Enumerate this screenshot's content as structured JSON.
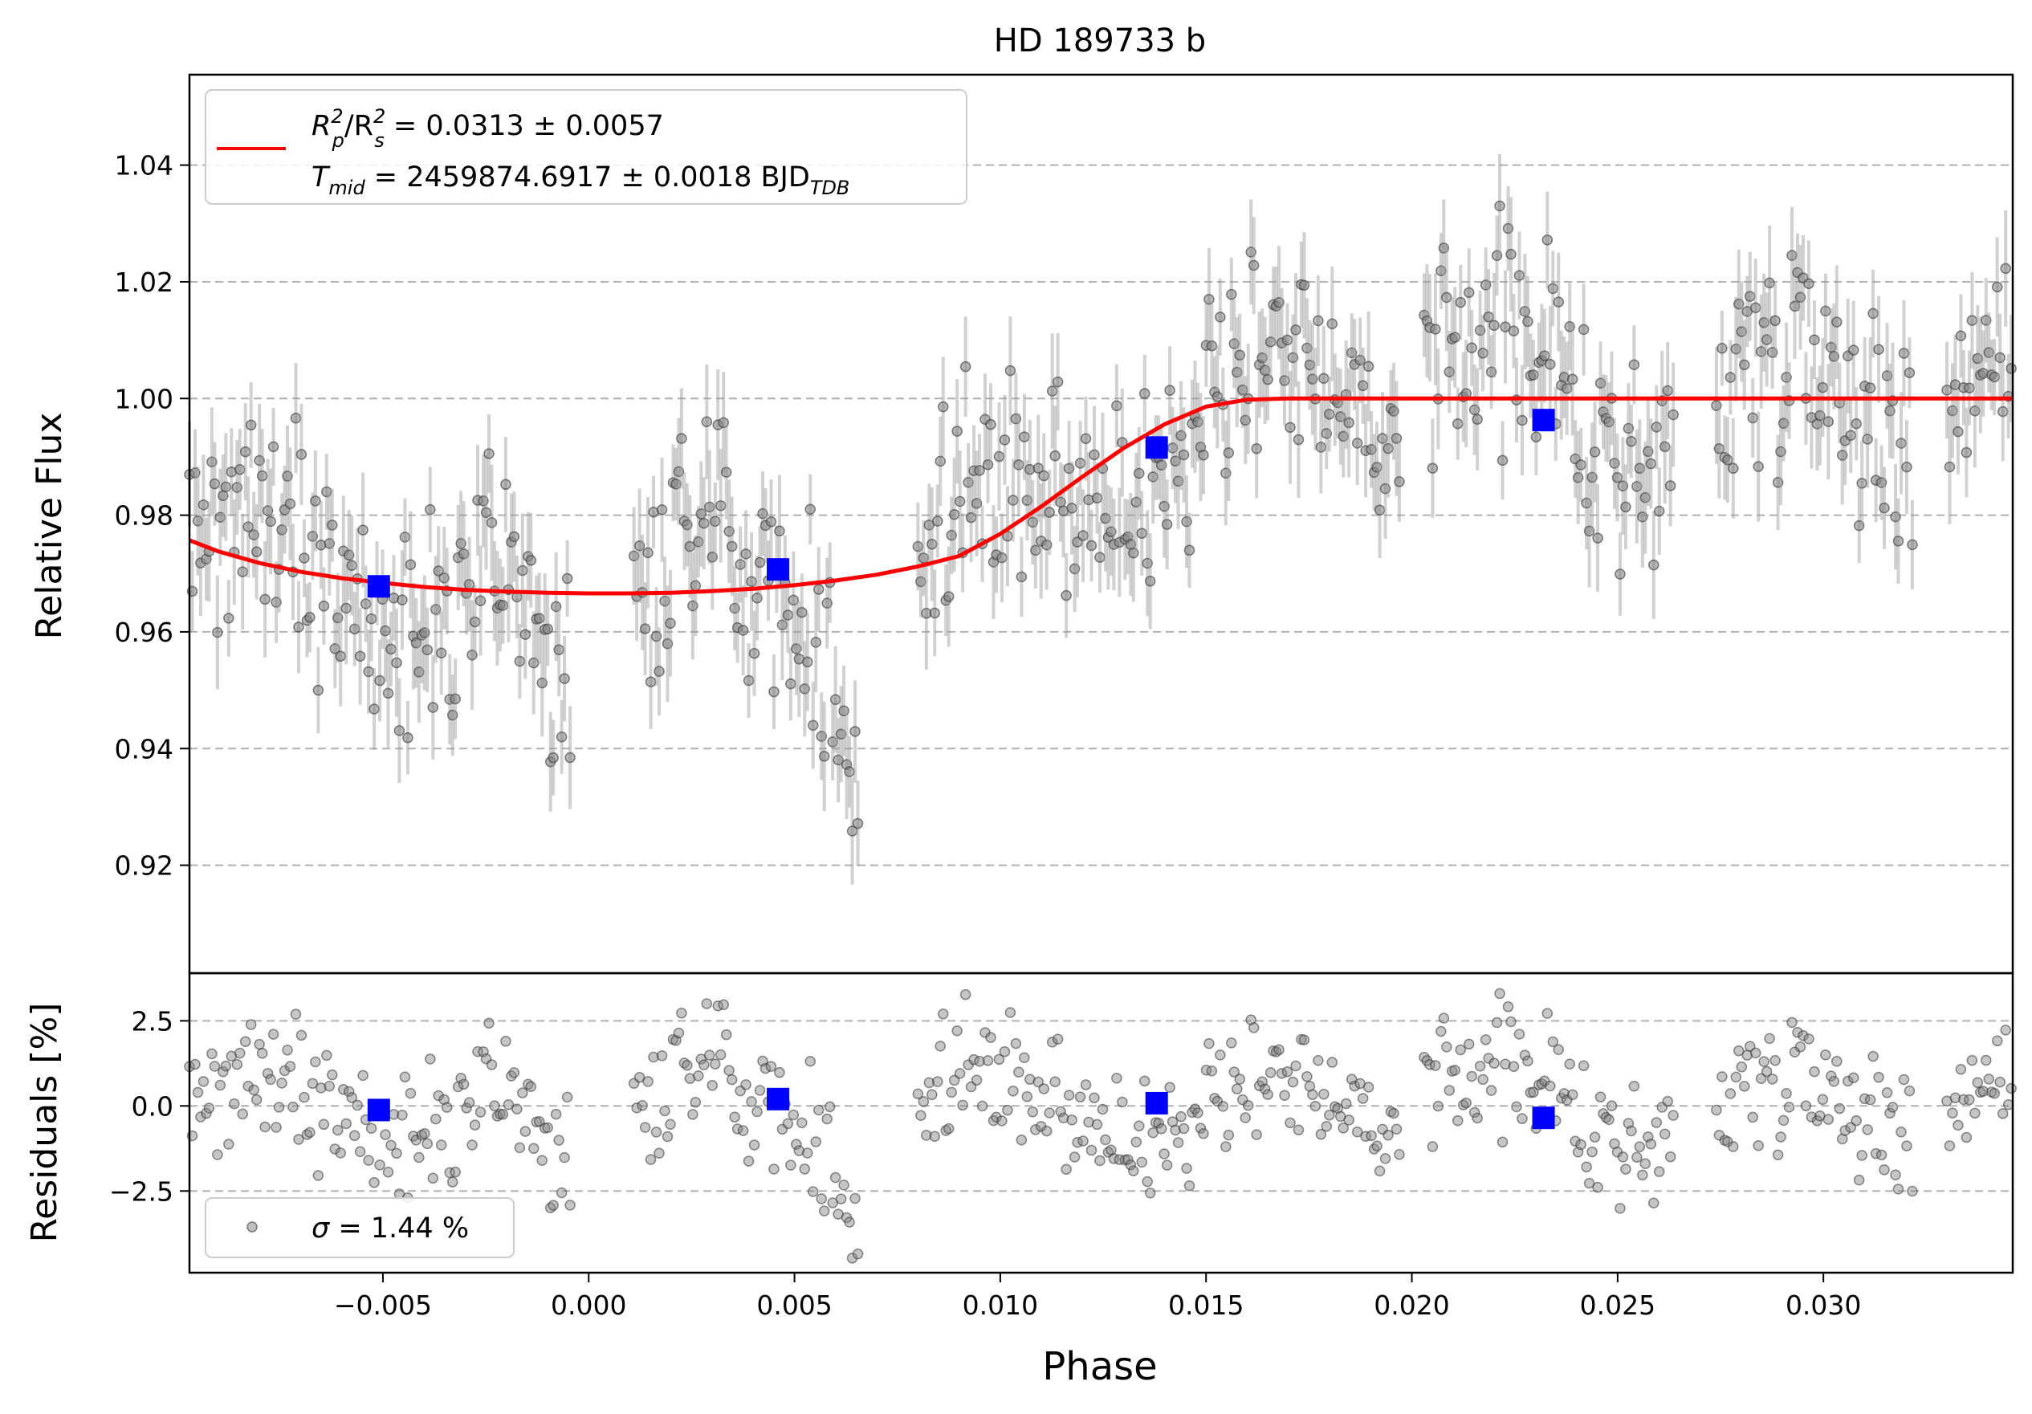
{
  "chart_data": [
    {
      "panel": "main",
      "type": "scatter",
      "title": "HD 189733 b",
      "xlabel": "",
      "ylabel": "Relative Flux",
      "xlim": [
        -0.0097,
        0.0346
      ],
      "ylim": [
        0.9015,
        1.0555
      ],
      "yticks": [
        0.92,
        0.94,
        0.96,
        0.98,
        1.0,
        1.02,
        1.04
      ],
      "ytick_labels": [
        "0.92",
        "0.94",
        "0.96",
        "0.98",
        "1.00",
        "1.02",
        "1.04"
      ],
      "grid": "y-dashed",
      "legend": {
        "placement": "upper-left",
        "line1": {
          "pre": "R",
          "sub1": "p",
          "sup1": "2",
          "mid": "/R",
          "sub2": "s",
          "sup2": "2",
          "post": " = 0.0313 ± 0.0057"
        },
        "line2": {
          "pre": "T",
          "sub1": "mid",
          "mid": " = 2459874.6917 ± 0.0018 BJD",
          "sub2": "TDB"
        }
      },
      "series": [
        {
          "kind": "model",
          "color": "#ff0000",
          "x": [
            -0.0097,
            -0.009,
            -0.008,
            -0.007,
            -0.006,
            -0.005,
            -0.004,
            -0.003,
            -0.002,
            -0.001,
            0.0,
            0.001,
            0.002,
            0.003,
            0.004,
            0.005,
            0.006,
            0.007,
            0.008,
            0.009,
            0.01,
            0.011,
            0.012,
            0.013,
            0.014,
            0.015,
            0.016,
            0.017,
            0.02,
            0.025,
            0.03,
            0.0346
          ],
          "y": [
            0.9757,
            0.9738,
            0.9718,
            0.9703,
            0.9692,
            0.9684,
            0.9677,
            0.9672,
            0.9669,
            0.9667,
            0.9666,
            0.9666,
            0.9667,
            0.967,
            0.9674,
            0.968,
            0.9688,
            0.9698,
            0.9712,
            0.973,
            0.9768,
            0.9815,
            0.9866,
            0.9915,
            0.9956,
            0.9986,
            0.9998,
            1.0,
            1.0,
            1.0,
            1.0,
            1.0
          ]
        },
        {
          "kind": "binned",
          "color": "#0000ff",
          "x": [
            -0.0051,
            0.0046,
            0.0138,
            0.0232
          ],
          "y": [
            0.9678,
            0.9707,
            0.9916,
            0.9963
          ]
        }
      ]
    },
    {
      "panel": "residuals",
      "type": "scatter",
      "xlabel": "Phase",
      "ylabel": "Residuals [%]",
      "xlim": [
        -0.0097,
        0.0346
      ],
      "ylim": [
        -4.9,
        3.9
      ],
      "yticks": [
        -2.5,
        0.0,
        2.5
      ],
      "ytick_labels": [
        "−2.5",
        "0.0",
        "2.5"
      ],
      "xticks": [
        -0.005,
        0.0,
        0.005,
        0.01,
        0.015,
        0.02,
        0.025,
        0.03
      ],
      "xtick_labels": [
        "−0.005",
        "0.000",
        "0.005",
        "0.010",
        "0.015",
        "0.020",
        "0.025",
        "0.030"
      ],
      "grid": "y-dashed",
      "legend": {
        "placement": "lower-left",
        "label_pre": "σ",
        "label_post": " = 1.44 %"
      },
      "series": [
        {
          "kind": "binned",
          "color": "#0000ff",
          "x": [
            -0.0051,
            0.0046,
            0.0138,
            0.0232
          ],
          "y": [
            -0.12,
            0.2,
            0.08,
            -0.35
          ]
        }
      ],
      "note_points": "Individual grey data points are dense (~600 points); represented approximately in the drawing script."
    }
  ]
}
